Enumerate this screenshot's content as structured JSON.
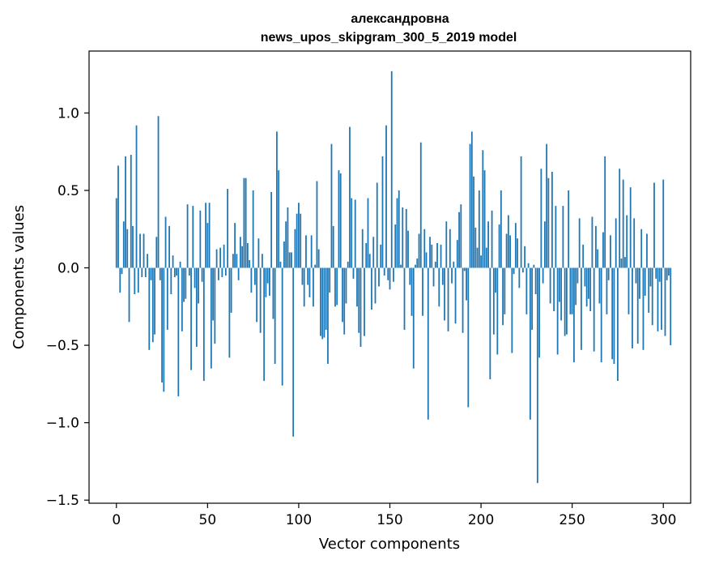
{
  "chart_data": {
    "type": "bar",
    "title": "александровна",
    "subtitle": "news_upos_skipgram_300_5_2019 model",
    "xlabel": "Vector components",
    "ylabel": "Components values",
    "xlim": [
      -15,
      315
    ],
    "ylim": [
      -1.52,
      1.4
    ],
    "xticks": [
      0,
      50,
      100,
      150,
      200,
      250,
      300
    ],
    "xtick_labels": [
      "0",
      "50",
      "100",
      "150",
      "200",
      "250",
      "300"
    ],
    "yticks": [
      -1.5,
      -1.0,
      -0.5,
      0.0,
      0.5,
      1.0
    ],
    "ytick_labels": [
      "−1.5",
      "−1.0",
      "−0.5",
      "0.0",
      "0.5",
      "1.0"
    ],
    "grid": false,
    "bar_color": "#1f77b4",
    "x_start": 0,
    "values": [
      0.45,
      0.66,
      -0.16,
      -0.04,
      0.3,
      0.72,
      0.25,
      -0.35,
      0.73,
      0.27,
      -0.17,
      0.92,
      -0.16,
      0.22,
      -0.06,
      0.22,
      -0.06,
      0.09,
      -0.53,
      -0.08,
      -0.48,
      -0.43,
      0.2,
      0.98,
      -0.08,
      -0.74,
      -0.8,
      0.33,
      -0.4,
      0.27,
      -0.17,
      0.08,
      -0.06,
      -0.05,
      -0.83,
      0.04,
      -0.41,
      -0.22,
      -0.2,
      0.41,
      -0.05,
      -0.66,
      0.4,
      -0.13,
      -0.51,
      -0.23,
      0.37,
      -0.09,
      -0.73,
      0.42,
      0.29,
      0.42,
      -0.65,
      -0.34,
      -0.49,
      0.12,
      -0.08,
      0.13,
      -0.06,
      0.15,
      -0.05,
      0.51,
      -0.58,
      -0.29,
      0.09,
      0.29,
      0.09,
      -0.08,
      0.2,
      0.14,
      0.58,
      0.58,
      0.16,
      0.05,
      -0.16,
      0.5,
      -0.11,
      -0.35,
      0.19,
      -0.42,
      0.09,
      -0.73,
      -0.19,
      -0.1,
      -0.18,
      0.49,
      -0.33,
      -0.62,
      0.88,
      0.63,
      0.04,
      -0.76,
      0.17,
      0.3,
      0.39,
      0.1,
      0.1,
      -1.09,
      0.25,
      0.35,
      0.42,
      0.35,
      -0.11,
      -0.25,
      0.21,
      -0.11,
      -0.19,
      0.21,
      -0.25,
      0.02,
      0.56,
      0.12,
      -0.44,
      -0.46,
      -0.45,
      -0.4,
      -0.62,
      -0.16,
      0.8,
      0.27,
      -0.25,
      -0.24,
      0.63,
      0.61,
      -0.35,
      -0.43,
      -0.23,
      0.04,
      0.91,
      0.45,
      -0.07,
      0.44,
      -0.25,
      -0.42,
      -0.51,
      0.25,
      -0.44,
      0.16,
      0.45,
      0.09,
      -0.27,
      0.2,
      -0.23,
      0.55,
      -0.12,
      0.15,
      0.72,
      -0.05,
      0.92,
      -0.08,
      -0.14,
      1.27,
      -0.09,
      0.28,
      0.45,
      0.5,
      0.02,
      0.39,
      -0.4,
      0.38,
      0.24,
      -0.11,
      -0.31,
      -0.65,
      0.02,
      0.06,
      0.22,
      0.81,
      -0.31,
      0.25,
      0.1,
      -0.98,
      0.2,
      0.15,
      -0.12,
      0.04,
      0.16,
      -0.25,
      0.15,
      -0.11,
      -0.34,
      0.3,
      -0.41,
      0.25,
      -0.1,
      0.04,
      -0.36,
      0.18,
      0.36,
      0.41,
      -0.42,
      -0.02,
      -0.21,
      -0.9,
      0.8,
      0.88,
      0.59,
      0.26,
      0.13,
      0.5,
      0.08,
      0.76,
      0.63,
      0.13,
      0.3,
      -0.72,
      0.37,
      -0.43,
      -0.16,
      -0.56,
      0.28,
      0.5,
      -0.37,
      -0.3,
      0.22,
      0.34,
      0.21,
      -0.55,
      -0.04,
      0.29,
      0.19,
      -0.13,
      0.72,
      -0.03,
      0.14,
      -0.3,
      0.03,
      -0.98,
      -0.4,
      0.02,
      -0.17,
      -1.39,
      -0.58,
      0.64,
      -0.1,
      0.3,
      0.8,
      0.58,
      -0.23,
      0.62,
      -0.28,
      0.4,
      -0.56,
      -0.22,
      -0.34,
      0.4,
      -0.44,
      -0.43,
      0.5,
      -0.3,
      -0.3,
      -0.61,
      -0.24,
      -0.1,
      0.32,
      -0.53,
      0.15,
      -0.12,
      -0.25,
      -0.2,
      -0.28,
      0.33,
      -0.54,
      0.27,
      0.12,
      -0.23,
      -0.61,
      0.23,
      0.72,
      -0.3,
      -0.08,
      0.21,
      -0.59,
      -0.62,
      0.32,
      -0.73,
      0.64,
      0.06,
      0.57,
      0.07,
      0.34,
      -0.3,
      0.52,
      -0.52,
      0.32,
      -0.1,
      -0.49,
      -0.2,
      0.25,
      -0.53,
      -0.18,
      0.22,
      -0.29,
      -0.12,
      -0.37,
      0.55,
      -0.07,
      -0.41,
      -0.09,
      -0.4,
      0.57,
      -0.44,
      -0.08,
      -0.05,
      -0.5
    ]
  }
}
